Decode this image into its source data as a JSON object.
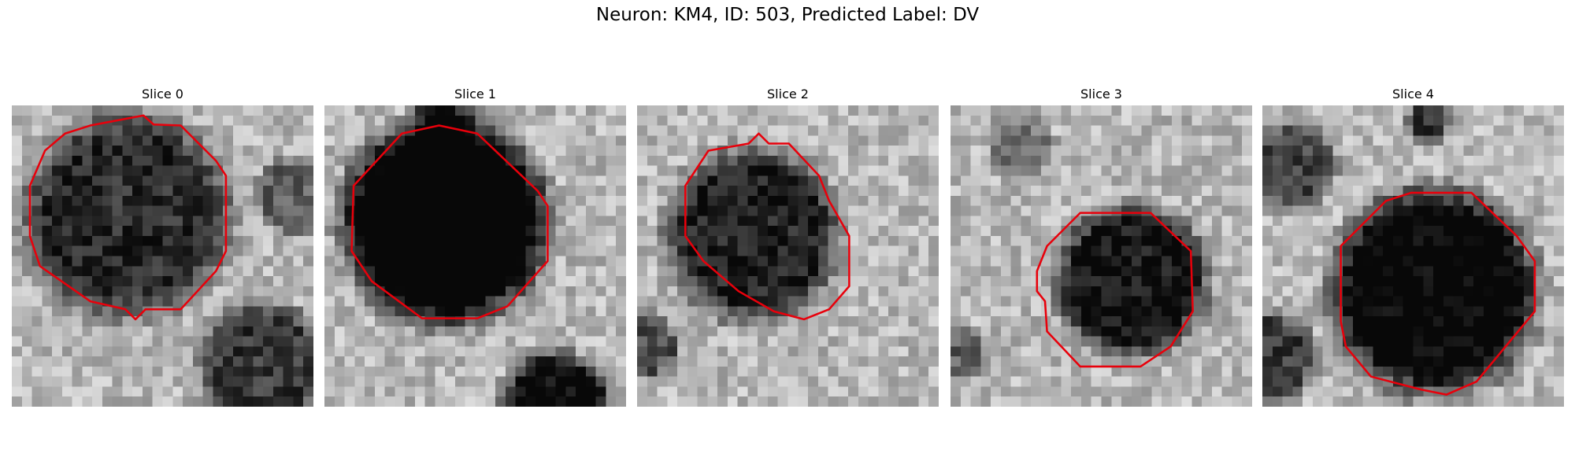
{
  "title": "Neuron: KM4, ID: 503, Predicted Label: DV",
  "panels": [
    {
      "title": "Slice 0"
    },
    {
      "title": "Slice 1"
    },
    {
      "title": "Slice 2"
    },
    {
      "title": "Slice 3"
    },
    {
      "title": "Slice 4"
    }
  ]
}
